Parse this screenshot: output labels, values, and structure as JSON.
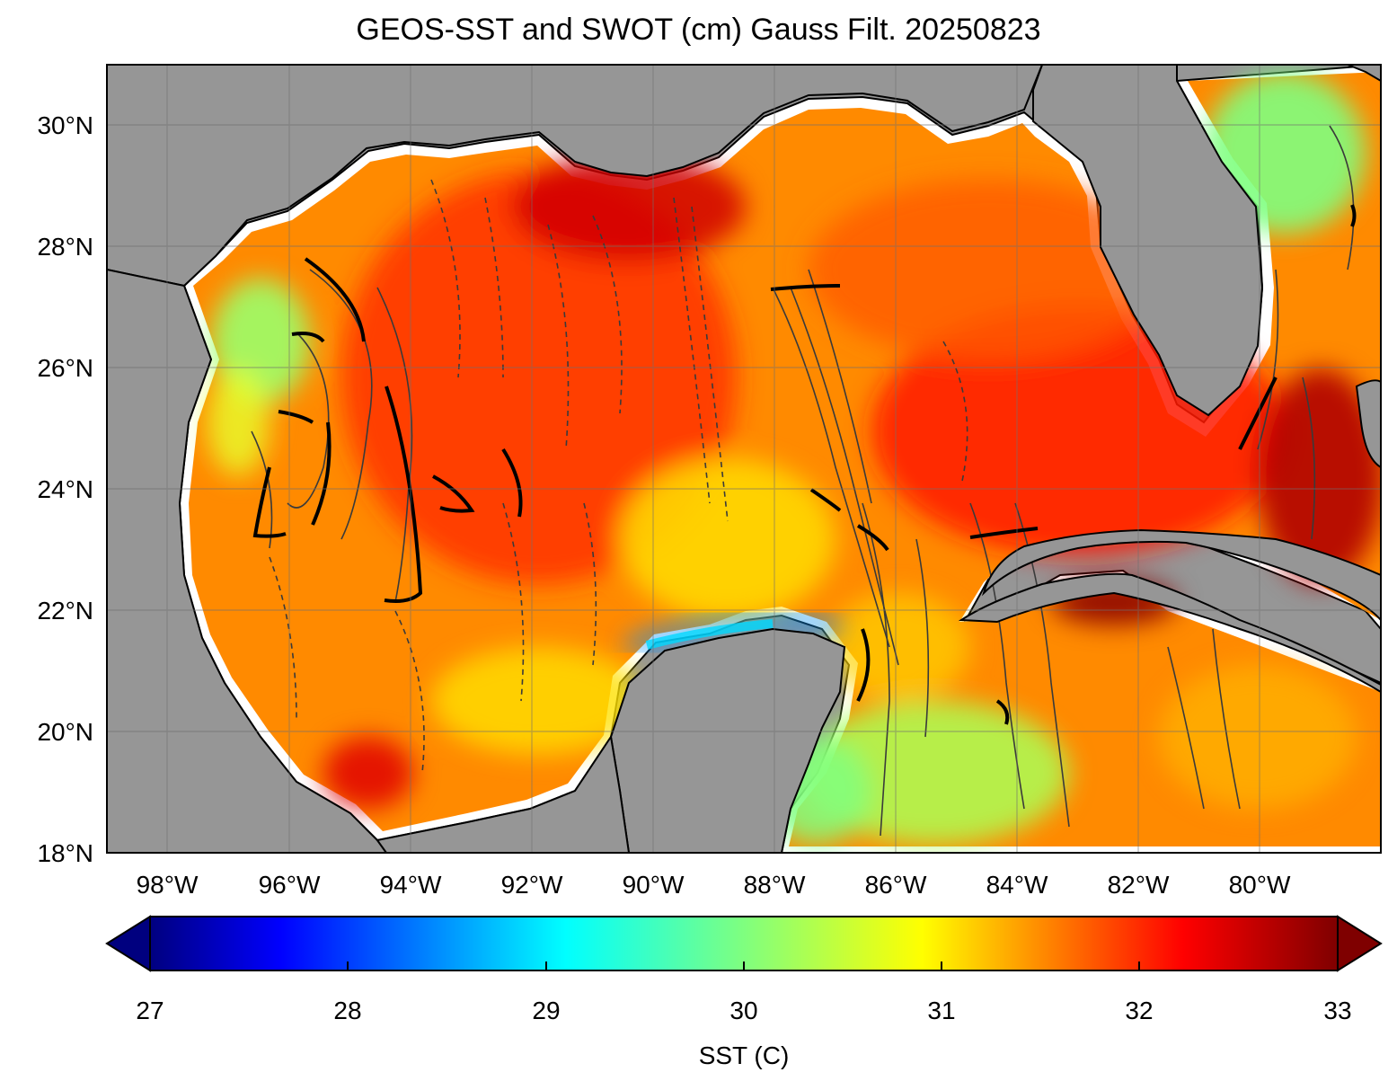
{
  "figure": {
    "title": "GEOS-SST  and SWOT (cm) Gauss Filt. 20250823"
  },
  "map": {
    "lon_range": [
      -99,
      -78.5
    ],
    "lat_range": [
      18,
      31
    ],
    "land_color": "#969696",
    "grid_color": "#7a7a7a",
    "lat_ticks": [
      {
        "value": 30,
        "label": "30°N"
      },
      {
        "value": 28,
        "label": "28°N"
      },
      {
        "value": 26,
        "label": "26°N"
      },
      {
        "value": 24,
        "label": "24°N"
      },
      {
        "value": 22,
        "label": "22°N"
      },
      {
        "value": 20,
        "label": "20°N"
      },
      {
        "value": 18,
        "label": "18°N"
      }
    ],
    "lon_ticks": [
      {
        "value": -98,
        "label": "98°W"
      },
      {
        "value": -96,
        "label": "96°W"
      },
      {
        "value": -94,
        "label": "94°W"
      },
      {
        "value": -92,
        "label": "92°W"
      },
      {
        "value": -90,
        "label": "90°W"
      },
      {
        "value": -88,
        "label": "88°W"
      },
      {
        "value": -86,
        "label": "86°W"
      },
      {
        "value": -84,
        "label": "84°W"
      },
      {
        "value": -82,
        "label": "82°W"
      },
      {
        "value": -80,
        "label": "80°W"
      }
    ]
  },
  "colorbar": {
    "label": "SST (C)",
    "min": 27,
    "max": 33,
    "ticks": [
      {
        "value": 27,
        "label": "27"
      },
      {
        "value": 28,
        "label": "28"
      },
      {
        "value": 29,
        "label": "29"
      },
      {
        "value": 30,
        "label": "30"
      },
      {
        "value": 31,
        "label": "31"
      },
      {
        "value": 32,
        "label": "32"
      },
      {
        "value": 33,
        "label": "33"
      }
    ],
    "colormap": "jet",
    "stops": [
      "#00007f",
      "#0000ff",
      "#007fff",
      "#00ffff",
      "#7fff7f",
      "#ffff00",
      "#ff7f00",
      "#ff0000",
      "#7f0000"
    ]
  }
}
